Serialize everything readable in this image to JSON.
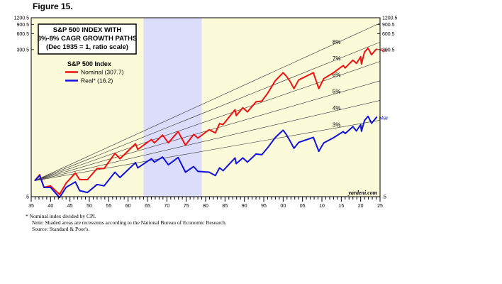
{
  "figure_label": "Figure 15.",
  "chart_data": {
    "type": "line",
    "title_lines": [
      "S&P 500 INDEX WITH",
      "3%-8% CAGR GROWTH PATHS",
      "(Dec 1935 = 1, ratio scale)"
    ],
    "legend_title": "S&P 500 Index",
    "y_scale": "log",
    "ylim": [
      0.5,
      1200.5
    ],
    "y_ticks": [
      0.5,
      300.5,
      600.5,
      900.5,
      1200.5
    ],
    "y_tick_labels": [
      ".5",
      "300.5",
      "600.5",
      "900.5",
      "1200.5"
    ],
    "xlim": [
      1935,
      2025
    ],
    "x_tick_labels": [
      "35",
      "40",
      "45",
      "50",
      "55",
      "60",
      "65",
      "70",
      "75",
      "80",
      "85",
      "90",
      "95",
      "00",
      "05",
      "10",
      "15",
      "20",
      "25"
    ],
    "recessions": [
      [
        1964,
        1979
      ]
    ],
    "series": [
      {
        "name": "Nominal (307.7)",
        "end_label": "Apr",
        "color": "#ee1111",
        "points": [
          [
            1935.9,
            1.0
          ],
          [
            1937.2,
            1.3
          ],
          [
            1938.3,
            0.75
          ],
          [
            1940.0,
            0.8
          ],
          [
            1942.3,
            0.55
          ],
          [
            1944.0,
            0.9
          ],
          [
            1946.4,
            1.4
          ],
          [
            1947.5,
            1.05
          ],
          [
            1949.5,
            1.05
          ],
          [
            1952.0,
            1.7
          ],
          [
            1953.8,
            1.7
          ],
          [
            1956.6,
            3.3
          ],
          [
            1957.9,
            2.6
          ],
          [
            1961.9,
            5.0
          ],
          [
            1962.5,
            3.9
          ],
          [
            1966.0,
            6.0
          ],
          [
            1966.8,
            5.2
          ],
          [
            1968.9,
            7.3
          ],
          [
            1970.4,
            5.2
          ],
          [
            1972.9,
            8.5
          ],
          [
            1974.8,
            4.7
          ],
          [
            1976.9,
            7.5
          ],
          [
            1978.0,
            6.4
          ],
          [
            1980.9,
            9.2
          ],
          [
            1982.5,
            8.0
          ],
          [
            1983.6,
            12.0
          ],
          [
            1984.5,
            11.5
          ],
          [
            1987.6,
            22.0
          ],
          [
            1987.9,
            17.0
          ],
          [
            1989.6,
            24.0
          ],
          [
            1990.8,
            20.0
          ],
          [
            1993.0,
            31.0
          ],
          [
            1994.5,
            32.0
          ],
          [
            1996.0,
            45.0
          ],
          [
            1998.0,
            78.0
          ],
          [
            2000.0,
            110.0
          ],
          [
            2000.8,
            95.0
          ],
          [
            2001.8,
            75.0
          ],
          [
            2002.8,
            55.0
          ],
          [
            2004.0,
            80.0
          ],
          [
            2007.8,
            110.0
          ],
          [
            2009.2,
            55.0
          ],
          [
            2010.5,
            85.0
          ],
          [
            2013.0,
            110.0
          ],
          [
            2015.5,
            150.0
          ],
          [
            2016.0,
            135.0
          ],
          [
            2018.0,
            190.0
          ],
          [
            2018.9,
            165.0
          ],
          [
            2020.0,
            220.0
          ],
          [
            2020.2,
            160.0
          ],
          [
            2021.0,
            270.0
          ],
          [
            2021.9,
            320.0
          ],
          [
            2022.8,
            240.0
          ],
          [
            2023.9,
            300.0
          ],
          [
            2024.3,
            307.7
          ]
        ]
      },
      {
        "name": "Real* (16.2)",
        "end_label": "Mar",
        "color": "#1111dd",
        "points": [
          [
            1935.9,
            1.0
          ],
          [
            1937.2,
            1.25
          ],
          [
            1938.3,
            0.75
          ],
          [
            1940.0,
            0.75
          ],
          [
            1942.3,
            0.48
          ],
          [
            1944.0,
            0.75
          ],
          [
            1946.4,
            0.95
          ],
          [
            1947.5,
            0.65
          ],
          [
            1949.5,
            0.6
          ],
          [
            1952.0,
            0.85
          ],
          [
            1953.8,
            0.8
          ],
          [
            1956.6,
            1.45
          ],
          [
            1957.9,
            1.15
          ],
          [
            1961.9,
            2.2
          ],
          [
            1962.5,
            1.75
          ],
          [
            1966.0,
            2.6
          ],
          [
            1966.8,
            2.25
          ],
          [
            1968.9,
            2.8
          ],
          [
            1970.4,
            2.0
          ],
          [
            1972.9,
            2.75
          ],
          [
            1974.8,
            1.45
          ],
          [
            1976.9,
            1.85
          ],
          [
            1978.0,
            1.5
          ],
          [
            1980.9,
            1.45
          ],
          [
            1982.5,
            1.25
          ],
          [
            1983.6,
            1.75
          ],
          [
            1984.5,
            1.55
          ],
          [
            1987.6,
            2.7
          ],
          [
            1987.9,
            2.1
          ],
          [
            1989.6,
            2.7
          ],
          [
            1990.8,
            2.25
          ],
          [
            1993.0,
            3.2
          ],
          [
            1994.5,
            3.1
          ],
          [
            1996.0,
            4.2
          ],
          [
            1998.0,
            6.6
          ],
          [
            2000.0,
            9.0
          ],
          [
            2000.8,
            7.5
          ],
          [
            2001.8,
            5.6
          ],
          [
            2002.8,
            4.1
          ],
          [
            2004.0,
            5.3
          ],
          [
            2007.8,
            6.6
          ],
          [
            2009.2,
            3.6
          ],
          [
            2010.5,
            5.2
          ],
          [
            2013.0,
            6.5
          ],
          [
            2015.5,
            8.5
          ],
          [
            2016.0,
            7.8
          ],
          [
            2018.0,
            10.5
          ],
          [
            2018.9,
            8.7
          ],
          [
            2020.0,
            11.5
          ],
          [
            2020.2,
            8.6
          ],
          [
            2021.0,
            13.8
          ],
          [
            2021.9,
            16.5
          ],
          [
            2022.8,
            12.2
          ],
          [
            2023.9,
            15.2
          ],
          [
            2024.2,
            16.2
          ]
        ]
      }
    ],
    "growth_paths": [
      {
        "label": "8%",
        "rate": 0.08
      },
      {
        "label": "7%",
        "rate": 0.07
      },
      {
        "label": "6%",
        "rate": 0.06
      },
      {
        "label": "5%",
        "rate": 0.05
      },
      {
        "label": "4%",
        "rate": 0.04
      },
      {
        "label": "3%",
        "rate": 0.03
      }
    ],
    "source_tag": "yardeni.com"
  },
  "footnote": [
    "*  Nominal index divided by CPI.",
    "Note: Shaded areas are recessions according to the National Bureau of Economic Research.",
    "Source: Standard & Poor's."
  ]
}
